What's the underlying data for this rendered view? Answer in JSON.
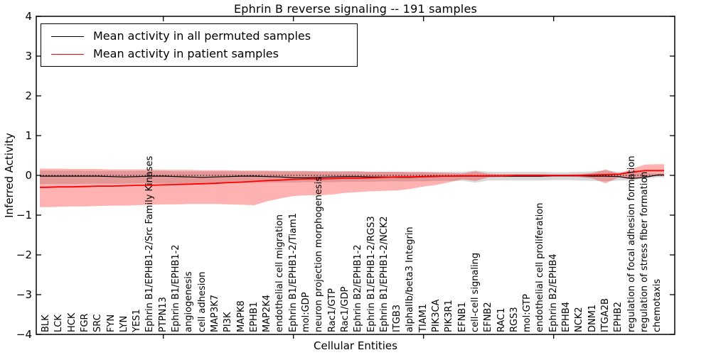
{
  "chart_data": {
    "type": "line",
    "title": "Ephrin B reverse signaling -- 191 samples",
    "xlabel": "Cellular Entities",
    "ylabel": "Inferred Activity",
    "ylim": [
      -4,
      4
    ],
    "yticks": [
      4,
      3,
      2,
      1,
      0,
      -1,
      -2,
      -3,
      -4
    ],
    "xticks_data_positions": [
      10,
      20,
      30,
      40
    ],
    "grid": false,
    "zero_line_style": "dotted",
    "legend_position": "upper left",
    "categories": [
      "BLK",
      "LCK",
      "HCK",
      "FGR",
      "SRC",
      "FYN",
      "LYN",
      "YES1",
      "Ephrin B1/EPHB1-2/Src Family Kinases",
      "PTPN13",
      "Ephrin B1/EPHB1-2",
      "angiogenesis",
      "cell adhesion",
      "MAP3K7",
      "PI3K",
      "MAPK8",
      "EPHB1",
      "MAP2K4",
      "endothelial cell migration",
      "Ephrin B1/EPHB1-2/Tiam1",
      "mol:GDP",
      "neuron projection morphogenesis",
      "Rac1/GTP",
      "Rac1/GDP",
      "Ephrin B2/EPHB1-2",
      "Ephrin B1/EPHB1-2/RGS3",
      "Ephrin B1/EPHB1-2/NCK2",
      "ITGB3",
      "alphaIIb/beta3 Integrin",
      "TIAM1",
      "PIK3CA",
      "PIK3R1",
      "EFNB1",
      "cell-cell signaling",
      "EFNB2",
      "RAC1",
      "RGS3",
      "mol:GTP",
      "endothelial cell proliferation",
      "Ephrin B2/EPHB4",
      "EPHB4",
      "NCK2",
      "DNM1",
      "ITGA2B",
      "EPHB2",
      "regulation of focal adhesion formation",
      "regulation of stress fiber formation",
      "chemotaxis"
    ],
    "series": [
      {
        "name": "Mean activity in all permuted samples",
        "color": "#000000",
        "band_color": "rgba(0,0,0,0.15)",
        "values": [
          -0.02,
          -0.02,
          -0.02,
          -0.02,
          -0.02,
          -0.03,
          -0.04,
          -0.03,
          -0.02,
          -0.02,
          -0.03,
          -0.04,
          -0.05,
          -0.04,
          -0.03,
          -0.02,
          -0.02,
          -0.03,
          -0.04,
          -0.06,
          -0.06,
          -0.05,
          -0.04,
          -0.03,
          -0.03,
          -0.04,
          -0.04,
          -0.05,
          -0.05,
          -0.04,
          -0.03,
          -0.02,
          -0.02,
          -0.02,
          -0.02,
          -0.02,
          -0.02,
          -0.02,
          -0.02,
          -0.01,
          -0.01,
          -0.01,
          -0.02,
          -0.02,
          -0.03,
          -0.08,
          -0.05,
          0.01
        ],
        "band_upper": [
          0.12,
          0.12,
          0.12,
          0.11,
          0.11,
          0.11,
          0.11,
          0.11,
          0.11,
          0.11,
          0.1,
          0.1,
          0.1,
          0.1,
          0.1,
          0.1,
          0.1,
          0.1,
          0.1,
          0.1,
          0.1,
          0.1,
          0.1,
          0.1,
          0.1,
          0.09,
          0.09,
          0.09,
          0.09,
          0.09,
          0.09,
          0.09,
          0.09,
          0.12,
          0.09,
          0.09,
          0.09,
          0.09,
          0.09,
          0.08,
          0.08,
          0.09,
          0.1,
          0.12,
          0.09,
          0.09,
          0.07,
          0.05
        ],
        "band_lower": [
          -0.22,
          -0.22,
          -0.22,
          -0.21,
          -0.21,
          -0.21,
          -0.21,
          -0.2,
          -0.2,
          -0.2,
          -0.2,
          -0.2,
          -0.19,
          -0.19,
          -0.19,
          -0.19,
          -0.19,
          -0.18,
          -0.18,
          -0.18,
          -0.17,
          -0.17,
          -0.17,
          -0.16,
          -0.16,
          -0.16,
          -0.15,
          -0.15,
          -0.15,
          -0.15,
          -0.14,
          -0.14,
          -0.14,
          -0.18,
          -0.13,
          -0.13,
          -0.13,
          -0.13,
          -0.13,
          -0.12,
          -0.12,
          -0.13,
          -0.14,
          -0.15,
          -0.13,
          -0.12,
          -0.08,
          -0.05
        ]
      },
      {
        "name": "Mean activity in patient samples",
        "color": "#ff0000",
        "band_color": "rgba(255,0,0,0.30)",
        "values": [
          -0.3,
          -0.29,
          -0.29,
          -0.28,
          -0.27,
          -0.27,
          -0.26,
          -0.25,
          -0.25,
          -0.24,
          -0.23,
          -0.22,
          -0.21,
          -0.2,
          -0.18,
          -0.17,
          -0.15,
          -0.13,
          -0.12,
          -0.1,
          -0.09,
          -0.09,
          -0.08,
          -0.07,
          -0.07,
          -0.06,
          -0.05,
          -0.04,
          -0.04,
          -0.03,
          -0.02,
          -0.02,
          -0.01,
          -0.01,
          -0.01,
          -0.01,
          0.0,
          0.0,
          0.0,
          0.0,
          0.0,
          0.0,
          0.01,
          0.02,
          0.03,
          0.08,
          0.12,
          0.12
        ],
        "band_upper": [
          0.17,
          0.17,
          0.16,
          0.16,
          0.16,
          0.15,
          0.15,
          0.15,
          0.15,
          0.14,
          0.14,
          0.14,
          0.13,
          0.13,
          0.13,
          0.12,
          0.12,
          0.12,
          0.11,
          0.11,
          0.11,
          0.1,
          0.1,
          0.1,
          0.1,
          0.09,
          0.09,
          0.09,
          0.08,
          0.08,
          0.07,
          0.06,
          0.05,
          0.1,
          0.04,
          0.03,
          0.03,
          0.03,
          0.03,
          0.02,
          0.02,
          0.03,
          0.06,
          0.15,
          0.04,
          0.16,
          0.27,
          0.28
        ],
        "band_lower": [
          -0.8,
          -0.79,
          -0.78,
          -0.78,
          -0.77,
          -0.76,
          -0.76,
          -0.75,
          -0.74,
          -0.73,
          -0.73,
          -0.72,
          -0.72,
          -0.72,
          -0.73,
          -0.74,
          -0.75,
          -0.65,
          -0.58,
          -0.52,
          -0.5,
          -0.5,
          -0.48,
          -0.44,
          -0.42,
          -0.4,
          -0.39,
          -0.38,
          -0.34,
          -0.28,
          -0.24,
          -0.17,
          -0.1,
          -0.14,
          -0.05,
          -0.04,
          -0.04,
          -0.04,
          -0.04,
          -0.03,
          -0.03,
          -0.04,
          -0.08,
          -0.2,
          -0.05,
          -0.1,
          -0.03,
          -0.02
        ]
      }
    ]
  }
}
